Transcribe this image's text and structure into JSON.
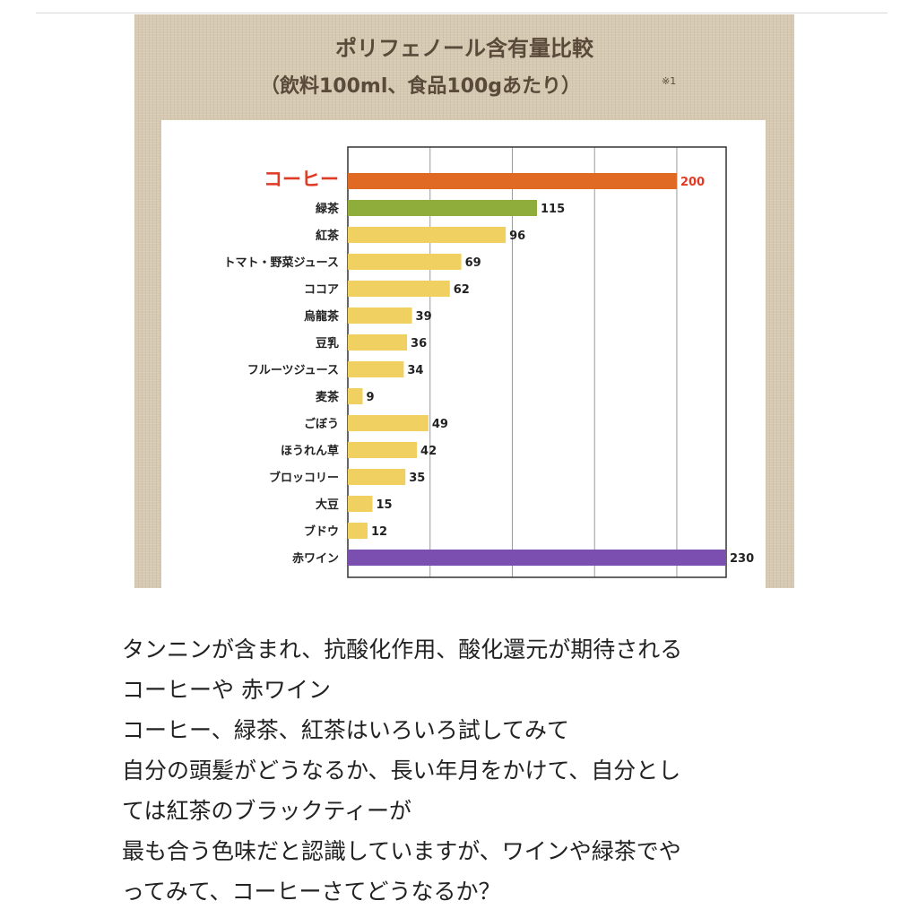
{
  "chart_data": {
    "type": "bar",
    "orientation": "horizontal",
    "title": "ポリフェノール含有量比較",
    "subtitle": "（飲料100ml、食品100gあたり）",
    "note": "※1",
    "categories": [
      "コーヒー",
      "緑茶",
      "紅茶",
      "トマト・野菜ジュース",
      "ココア",
      "烏龍茶",
      "豆乳",
      "フルーツジュース",
      "麦茶",
      "ごぼう",
      "ほうれん草",
      "ブロッコリー",
      "大豆",
      "ブドウ",
      "赤ワイン"
    ],
    "values": [
      200,
      115,
      96,
      69,
      62,
      39,
      36,
      34,
      9,
      49,
      42,
      35,
      15,
      12,
      230
    ],
    "bar_colors": [
      "#e06a24",
      "#8fad3a",
      "#f0d060",
      "#f0d060",
      "#f0d060",
      "#f0d060",
      "#f0d060",
      "#f0d060",
      "#f0d060",
      "#f0d060",
      "#f0d060",
      "#f0d060",
      "#f0d060",
      "#f0d060",
      "#7a4fb0"
    ],
    "highlight_category": "コーヒー",
    "highlight_color": "#e03a25",
    "xlim": [
      0,
      230
    ],
    "grid": true,
    "grid_values": [
      50,
      100,
      150,
      200
    ]
  },
  "body_text": [
    "タンニンが含まれ、抗酸化作用、酸化還元が期待される",
    "コーヒーや 赤ワイン",
    "コーヒー、緑茶、紅茶はいろいろ試してみて",
    "自分の頭髪がどうなるか、長い年月をかけて、自分とし",
    "ては紅茶のブラックティーが",
    "最も合う色味だと認識していますが、ワインや緑茶でや",
    "ってみて、コーヒーさてどうなるか？"
  ]
}
